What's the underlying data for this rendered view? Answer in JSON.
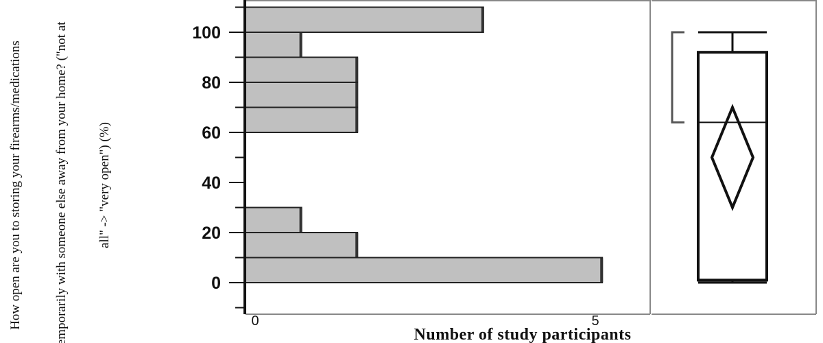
{
  "chart_data": [
    {
      "type": "bar",
      "orientation": "horizontal",
      "title": "",
      "xlabel": "Number of study participants",
      "ylabel_lines": [
        "How open are you to storing your firearms/medications",
        "temporarily with someone else away from your home? (\"not at",
        "all\" -> \"very open\") (%)"
      ],
      "x_ticks": [
        "0",
        "5"
      ],
      "y_ticks": [
        "0",
        "20",
        "40",
        "60",
        "80",
        "100"
      ],
      "xlim": [
        0,
        5.8
      ],
      "ylim": [
        -12,
        110
      ],
      "bins": [
        {
          "start": 0,
          "end": 10,
          "count": 5.1
        },
        {
          "start": 10,
          "end": 20,
          "count": 1.6
        },
        {
          "start": 20,
          "end": 30,
          "count": 0.8
        },
        {
          "start": 60,
          "end": 70,
          "count": 1.6
        },
        {
          "start": 70,
          "end": 80,
          "count": 1.6
        },
        {
          "start": 80,
          "end": 90,
          "count": 1.6
        },
        {
          "start": 90,
          "end": 100,
          "count": 0.8
        },
        {
          "start": 100,
          "end": 110,
          "count": 3.4
        }
      ],
      "bar_color": "#c0c0c0",
      "grid": false
    },
    {
      "type": "box",
      "summary": {
        "min": 0,
        "q1": 1,
        "median": 64,
        "q3": 92,
        "max": 100,
        "mean": 50,
        "ci_low": 30,
        "ci_high": 70,
        "shortest_half_low": 64,
        "shortest_half_high": 100
      }
    }
  ]
}
